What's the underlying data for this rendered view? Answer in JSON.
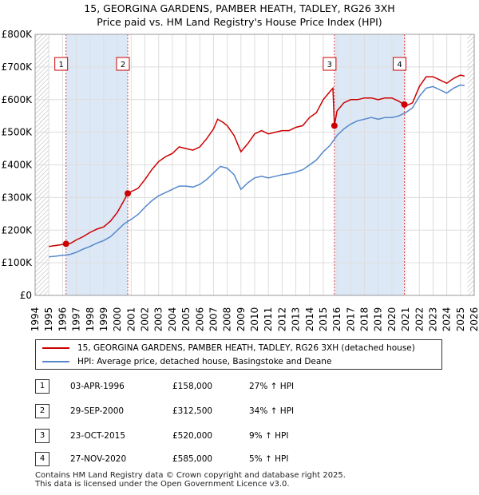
{
  "title_line1": "15, GEORGINA GARDENS, PAMBER HEATH, TADLEY, RG26 3XH",
  "title_line2": "Price paid vs. HM Land Registry's House Price Index (HPI)",
  "chart_data": {
    "type": "line",
    "title": "15, GEORGINA GARDENS, PAMBER HEATH, TADLEY, RG26 3XH - Price paid vs. HM Land Registry's House Price Index (HPI)",
    "xlim": [
      1994,
      2026
    ],
    "ylim": [
      0,
      800000
    ],
    "y_ticks": [
      0,
      100000,
      200000,
      300000,
      400000,
      500000,
      600000,
      700000,
      800000
    ],
    "y_tick_labels": [
      "£0",
      "£100K",
      "£200K",
      "£300K",
      "£400K",
      "£500K",
      "£600K",
      "£700K",
      "£800K"
    ],
    "x_ticks": [
      1994,
      1995,
      1996,
      1997,
      1998,
      1999,
      2000,
      2001,
      2002,
      2003,
      2004,
      2005,
      2006,
      2007,
      2008,
      2009,
      2010,
      2011,
      2012,
      2013,
      2014,
      2015,
      2016,
      2017,
      2018,
      2019,
      2020,
      2021,
      2022,
      2023,
      2024,
      2025,
      2026
    ],
    "data_range": [
      1995,
      2025.5
    ],
    "series": [
      {
        "name": "15, GEORGINA GARDENS, PAMBER HEATH, TADLEY, RG26 3XH (detached house)",
        "color": "#cc0000",
        "points": [
          [
            1995,
            150000
          ],
          [
            1995.5,
            153000
          ],
          [
            1996,
            156000
          ],
          [
            1996.25,
            158000
          ],
          [
            1996.6,
            160000
          ],
          [
            1997,
            170000
          ],
          [
            1997.5,
            180000
          ],
          [
            1998,
            193000
          ],
          [
            1998.5,
            203000
          ],
          [
            1999,
            210000
          ],
          [
            1999.5,
            228000
          ],
          [
            2000,
            255000
          ],
          [
            2000.4,
            285000
          ],
          [
            2000.75,
            312500
          ],
          [
            2001,
            318000
          ],
          [
            2001.5,
            328000
          ],
          [
            2002,
            355000
          ],
          [
            2002.5,
            385000
          ],
          [
            2003,
            410000
          ],
          [
            2003.5,
            425000
          ],
          [
            2004,
            435000
          ],
          [
            2004.5,
            455000
          ],
          [
            2005,
            450000
          ],
          [
            2005.5,
            445000
          ],
          [
            2006,
            455000
          ],
          [
            2006.5,
            480000
          ],
          [
            2007,
            510000
          ],
          [
            2007.3,
            540000
          ],
          [
            2007.7,
            530000
          ],
          [
            2008,
            520000
          ],
          [
            2008.5,
            490000
          ],
          [
            2009,
            440000
          ],
          [
            2009.5,
            465000
          ],
          [
            2010,
            495000
          ],
          [
            2010.5,
            505000
          ],
          [
            2011,
            495000
          ],
          [
            2011.5,
            500000
          ],
          [
            2012,
            505000
          ],
          [
            2012.5,
            505000
          ],
          [
            2013,
            515000
          ],
          [
            2013.5,
            520000
          ],
          [
            2014,
            545000
          ],
          [
            2014.5,
            560000
          ],
          [
            2015,
            600000
          ],
          [
            2015.5,
            625000
          ],
          [
            2015.7,
            635000
          ],
          [
            2015.81,
            520000
          ],
          [
            2016,
            565000
          ],
          [
            2016.5,
            590000
          ],
          [
            2017,
            600000
          ],
          [
            2017.5,
            600000
          ],
          [
            2018,
            605000
          ],
          [
            2018.5,
            605000
          ],
          [
            2019,
            600000
          ],
          [
            2019.5,
            605000
          ],
          [
            2020,
            605000
          ],
          [
            2020.5,
            595000
          ],
          [
            2020.9,
            585000
          ],
          [
            2021,
            580000
          ],
          [
            2021.5,
            590000
          ],
          [
            2022,
            640000
          ],
          [
            2022.5,
            670000
          ],
          [
            2023,
            670000
          ],
          [
            2023.5,
            660000
          ],
          [
            2024,
            650000
          ],
          [
            2024.5,
            665000
          ],
          [
            2025,
            675000
          ],
          [
            2025.3,
            672000
          ]
        ]
      },
      {
        "name": "HPI: Average price, detached house, Basingstoke and Deane",
        "color": "#5588cc",
        "points": [
          [
            1995,
            118000
          ],
          [
            1995.5,
            120000
          ],
          [
            1996,
            123000
          ],
          [
            1996.5,
            125000
          ],
          [
            1997,
            132000
          ],
          [
            1997.5,
            142000
          ],
          [
            1998,
            150000
          ],
          [
            1998.5,
            160000
          ],
          [
            1999,
            168000
          ],
          [
            1999.5,
            180000
          ],
          [
            2000,
            200000
          ],
          [
            2000.5,
            220000
          ],
          [
            2001,
            233000
          ],
          [
            2001.5,
            248000
          ],
          [
            2002,
            270000
          ],
          [
            2002.5,
            290000
          ],
          [
            2003,
            305000
          ],
          [
            2003.5,
            315000
          ],
          [
            2004,
            325000
          ],
          [
            2004.5,
            335000
          ],
          [
            2005,
            335000
          ],
          [
            2005.5,
            332000
          ],
          [
            2006,
            340000
          ],
          [
            2006.5,
            355000
          ],
          [
            2007,
            375000
          ],
          [
            2007.5,
            395000
          ],
          [
            2008,
            390000
          ],
          [
            2008.5,
            370000
          ],
          [
            2009,
            325000
          ],
          [
            2009.5,
            345000
          ],
          [
            2010,
            360000
          ],
          [
            2010.5,
            365000
          ],
          [
            2011,
            360000
          ],
          [
            2011.5,
            365000
          ],
          [
            2012,
            370000
          ],
          [
            2012.5,
            373000
          ],
          [
            2013,
            378000
          ],
          [
            2013.5,
            385000
          ],
          [
            2014,
            400000
          ],
          [
            2014.5,
            415000
          ],
          [
            2015,
            440000
          ],
          [
            2015.5,
            460000
          ],
          [
            2016,
            490000
          ],
          [
            2016.5,
            510000
          ],
          [
            2017,
            525000
          ],
          [
            2017.5,
            535000
          ],
          [
            2018,
            540000
          ],
          [
            2018.5,
            545000
          ],
          [
            2019,
            540000
          ],
          [
            2019.5,
            545000
          ],
          [
            2020,
            545000
          ],
          [
            2020.5,
            550000
          ],
          [
            2021,
            560000
          ],
          [
            2021.5,
            575000
          ],
          [
            2022,
            610000
          ],
          [
            2022.5,
            635000
          ],
          [
            2023,
            640000
          ],
          [
            2023.5,
            630000
          ],
          [
            2024,
            620000
          ],
          [
            2024.5,
            635000
          ],
          [
            2025,
            645000
          ],
          [
            2025.3,
            643000
          ]
        ]
      }
    ],
    "sales": [
      {
        "label": "1",
        "x": 1996.25,
        "price": 158000
      },
      {
        "label": "2",
        "x": 2000.75,
        "price": 312500
      },
      {
        "label": "3",
        "x": 2015.81,
        "price": 520000
      },
      {
        "label": "4",
        "x": 2020.91,
        "price": 585000
      }
    ],
    "sale_band_color": "#dde8f6",
    "hatch_regions": [
      [
        1994,
        1995
      ],
      [
        2025.5,
        2026
      ]
    ]
  },
  "legend": {
    "property_label": "15, GEORGINA GARDENS, PAMBER HEATH, TADLEY, RG26 3XH (detached house)",
    "hpi_label": "HPI: Average price, detached house, Basingstoke and Deane"
  },
  "transactions": [
    {
      "num": "1",
      "date": "03-APR-1996",
      "price": "£158,000",
      "hpi": "27% ↑ HPI"
    },
    {
      "num": "2",
      "date": "29-SEP-2000",
      "price": "£312,500",
      "hpi": "34% ↑ HPI"
    },
    {
      "num": "3",
      "date": "23-OCT-2015",
      "price": "£520,000",
      "hpi": "9% ↑ HPI"
    },
    {
      "num": "4",
      "date": "27-NOV-2020",
      "price": "£585,000",
      "hpi": "5% ↑ HPI"
    }
  ],
  "footer_line1": "Contains HM Land Registry data © Crown copyright and database right 2025.",
  "footer_line2": "This data is licensed under the Open Government Licence v3.0."
}
